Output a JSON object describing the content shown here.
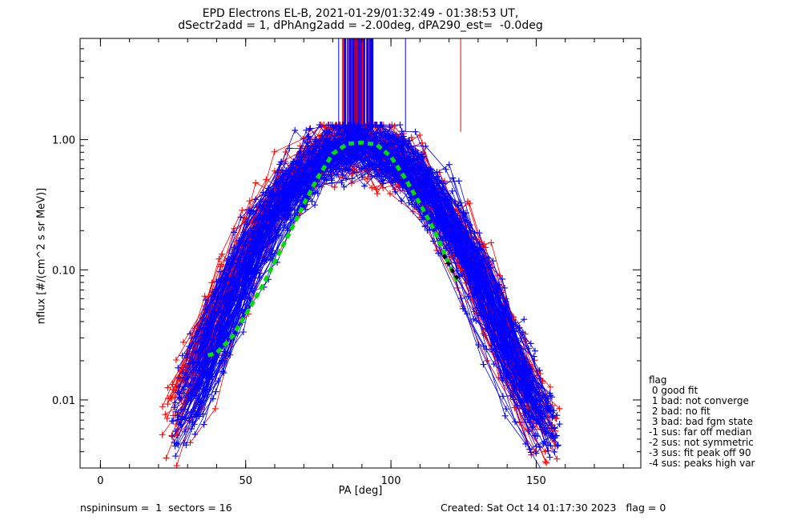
{
  "chart_data": {
    "type": "scatter",
    "title": "EPD Electrons EL-B, 2021-01-29/01:32:49 - 01:38:53 UT,",
    "subtitle": "dSectr2add = 1, dPhAng2add = -2.00deg, dPA290_est=  -0.0deg",
    "xlabel": "PA [deg]",
    "ylabel": "nflux [#/(cm^2 s sr MeV)]",
    "xlim": [
      -7,
      186
    ],
    "ylim": [
      0.003,
      6
    ],
    "yscale": "log",
    "xticks": [
      "0",
      "50",
      "100",
      "150"
    ],
    "xtick_values": [
      0,
      50,
      100,
      150
    ],
    "yticks": [
      "0.01",
      "0.10",
      "1.00"
    ],
    "ytick_values": [
      0.01,
      0.1,
      1.0
    ],
    "series": [
      {
        "color": "#ff0000",
        "marker": "+",
        "pa_range": [
          23,
          157
        ],
        "peak_pa": 88,
        "peak_flux": 0.95
      },
      {
        "color": "#0000ff",
        "marker": "+",
        "pa_range": [
          25,
          157
        ],
        "peak_pa": 89,
        "peak_flux": 0.9
      }
    ],
    "fit_curve": {
      "color": "#00dd00",
      "style": "dashed",
      "x": [
        37,
        40,
        45,
        50,
        55,
        60,
        65,
        70,
        75,
        80,
        85,
        90,
        95,
        100,
        105,
        110,
        115,
        120,
        123
      ],
      "y": [
        0.022,
        0.023,
        0.03,
        0.045,
        0.07,
        0.115,
        0.19,
        0.32,
        0.52,
        0.78,
        0.93,
        0.95,
        0.92,
        0.74,
        0.5,
        0.32,
        0.2,
        0.11,
        0.08
      ]
    },
    "fit_extension": {
      "color": "#000000",
      "x": [
        118,
        121,
        123
      ],
      "y": [
        0.13,
        0.1,
        0.085
      ]
    }
  },
  "legend": {
    "title": "flag",
    "items": [
      " 0 good fit",
      " 1 bad: not converge",
      " 2 bad: no fit",
      " 3 bad: bad fgm state",
      "-1 sus: far off median",
      "-2 sus: not symmetric",
      "-3 sus: fit peak off 90",
      "-4 sus: peaks high var"
    ]
  },
  "footer": {
    "left": "nspininsum =  1  sectors = 16",
    "right": "Created: Sat Oct 14 01:17:30 2023   flag = 0"
  },
  "colors": {
    "red": "#ff0000",
    "blue": "#0000ff",
    "fit": "#00dd00",
    "extension": "#000000"
  }
}
